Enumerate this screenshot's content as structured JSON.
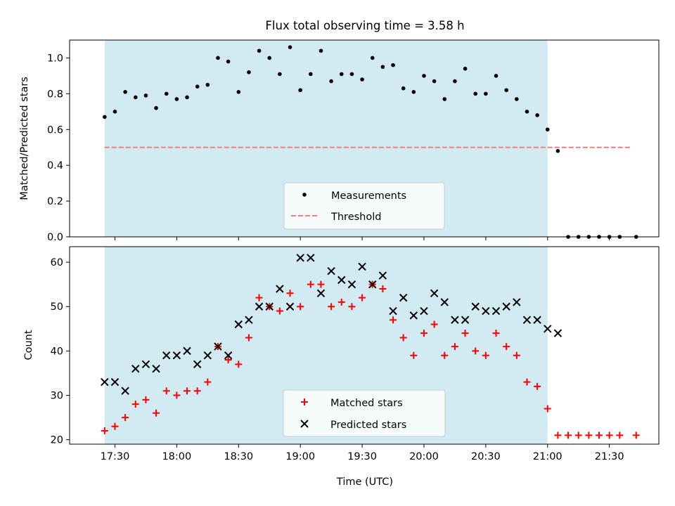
{
  "chart_data": [
    {
      "type": "scatter",
      "title": "Flux total observing time = 3.58 h",
      "xlabel": "",
      "ylabel": "Matched/Predicted stars",
      "ylim": [
        0,
        1.1
      ],
      "yticks": [
        "0.0",
        "0.2",
        "0.4",
        "0.6",
        "0.8",
        "1.0"
      ],
      "xlim_minutes": [
        1028,
        1314
      ],
      "xtick_labels_shown": false,
      "shaded_interval": {
        "start": "17:25",
        "end": "21:00",
        "color": "#add8e6"
      },
      "threshold": {
        "label": "Threshold",
        "value": 0.5,
        "from": "17:25",
        "to": "21:41",
        "color": "#f08080",
        "style": "dashed"
      },
      "legend_position": "lower center",
      "series": [
        {
          "name": "Measurements",
          "color": "#000000",
          "marker": "dot",
          "points": [
            [
              "17:25",
              0.67
            ],
            [
              "17:30",
              0.7
            ],
            [
              "17:35",
              0.81
            ],
            [
              "17:40",
              0.78
            ],
            [
              "17:45",
              0.79
            ],
            [
              "17:50",
              0.72
            ],
            [
              "17:55",
              0.8
            ],
            [
              "18:00",
              0.77
            ],
            [
              "18:05",
              0.78
            ],
            [
              "18:10",
              0.84
            ],
            [
              "18:15",
              0.85
            ],
            [
              "18:20",
              1.0
            ],
            [
              "18:25",
              0.98
            ],
            [
              "18:30",
              0.81
            ],
            [
              "18:35",
              0.92
            ],
            [
              "18:40",
              1.04
            ],
            [
              "18:45",
              1.0
            ],
            [
              "18:50",
              0.91
            ],
            [
              "18:55",
              1.06
            ],
            [
              "19:00",
              0.82
            ],
            [
              "19:05",
              0.91
            ],
            [
              "19:10",
              1.04
            ],
            [
              "19:15",
              0.87
            ],
            [
              "19:20",
              0.91
            ],
            [
              "19:25",
              0.91
            ],
            [
              "19:30",
              0.88
            ],
            [
              "19:35",
              1.0
            ],
            [
              "19:40",
              0.95
            ],
            [
              "19:45",
              0.96
            ],
            [
              "19:50",
              0.83
            ],
            [
              "19:55",
              0.81
            ],
            [
              "20:00",
              0.9
            ],
            [
              "20:05",
              0.87
            ],
            [
              "20:10",
              0.77
            ],
            [
              "20:15",
              0.87
            ],
            [
              "20:20",
              0.94
            ],
            [
              "20:25",
              0.8
            ],
            [
              "20:30",
              0.8
            ],
            [
              "20:35",
              0.9
            ],
            [
              "20:40",
              0.82
            ],
            [
              "20:45",
              0.77
            ],
            [
              "20:50",
              0.7
            ],
            [
              "20:55",
              0.68
            ],
            [
              "21:00",
              0.6
            ],
            [
              "21:05",
              0.48
            ],
            [
              "21:10",
              0.0
            ],
            [
              "21:15",
              0.0
            ],
            [
              "21:20",
              0.0
            ],
            [
              "21:25",
              0.0
            ],
            [
              "21:30",
              0.0
            ],
            [
              "21:35",
              0.0
            ],
            [
              "21:43",
              0.0
            ]
          ]
        }
      ]
    },
    {
      "type": "scatter",
      "title": "",
      "xlabel": "Time (UTC)",
      "ylabel": "Count",
      "ylim": [
        19,
        63.5
      ],
      "yticks": [
        "20",
        "30",
        "40",
        "50",
        "60"
      ],
      "xlim_minutes": [
        1028,
        1314
      ],
      "xticks": [
        "17:30",
        "18:00",
        "18:30",
        "19:00",
        "19:30",
        "20:00",
        "20:30",
        "21:00",
        "21:30"
      ],
      "shaded_interval": {
        "start": "17:25",
        "end": "21:00",
        "color": "#add8e6"
      },
      "legend_position": "lower center",
      "series": [
        {
          "name": "Matched stars",
          "color": "#ff0000",
          "marker": "plus",
          "points": [
            [
              "17:25",
              22
            ],
            [
              "17:30",
              23
            ],
            [
              "17:35",
              25
            ],
            [
              "17:40",
              28
            ],
            [
              "17:45",
              29
            ],
            [
              "17:50",
              26
            ],
            [
              "17:55",
              31
            ],
            [
              "18:00",
              30
            ],
            [
              "18:05",
              31
            ],
            [
              "18:10",
              31
            ],
            [
              "18:15",
              33
            ],
            [
              "18:20",
              41
            ],
            [
              "18:25",
              38
            ],
            [
              "18:30",
              37
            ],
            [
              "18:35",
              43
            ],
            [
              "18:40",
              52
            ],
            [
              "18:45",
              50
            ],
            [
              "18:50",
              49
            ],
            [
              "18:55",
              53
            ],
            [
              "19:00",
              50
            ],
            [
              "19:05",
              55
            ],
            [
              "19:10",
              55
            ],
            [
              "19:15",
              50
            ],
            [
              "19:20",
              51
            ],
            [
              "19:25",
              50
            ],
            [
              "19:30",
              52
            ],
            [
              "19:35",
              55
            ],
            [
              "19:40",
              54
            ],
            [
              "19:45",
              47
            ],
            [
              "19:50",
              43
            ],
            [
              "19:55",
              39
            ],
            [
              "20:00",
              44
            ],
            [
              "20:05",
              46
            ],
            [
              "20:10",
              39
            ],
            [
              "20:15",
              41
            ],
            [
              "20:20",
              44
            ],
            [
              "20:25",
              40
            ],
            [
              "20:30",
              39
            ],
            [
              "20:35",
              44
            ],
            [
              "20:40",
              41
            ],
            [
              "20:45",
              39
            ],
            [
              "20:50",
              33
            ],
            [
              "20:55",
              32
            ],
            [
              "21:00",
              27
            ],
            [
              "21:05",
              21
            ],
            [
              "21:10",
              21
            ],
            [
              "21:15",
              21
            ],
            [
              "21:20",
              21
            ],
            [
              "21:25",
              21
            ],
            [
              "21:30",
              21
            ],
            [
              "21:35",
              21
            ],
            [
              "21:43",
              21
            ]
          ]
        },
        {
          "name": "Predicted stars",
          "color": "#000000",
          "marker": "x",
          "points": [
            [
              "17:25",
              33
            ],
            [
              "17:30",
              33
            ],
            [
              "17:35",
              31
            ],
            [
              "17:40",
              36
            ],
            [
              "17:45",
              37
            ],
            [
              "17:50",
              36
            ],
            [
              "17:55",
              39
            ],
            [
              "18:00",
              39
            ],
            [
              "18:05",
              40
            ],
            [
              "18:10",
              37
            ],
            [
              "18:15",
              39
            ],
            [
              "18:20",
              41
            ],
            [
              "18:25",
              39
            ],
            [
              "18:30",
              46
            ],
            [
              "18:35",
              47
            ],
            [
              "18:40",
              50
            ],
            [
              "18:45",
              50
            ],
            [
              "18:50",
              54
            ],
            [
              "18:55",
              50
            ],
            [
              "19:00",
              61
            ],
            [
              "19:05",
              61
            ],
            [
              "19:10",
              53
            ],
            [
              "19:15",
              58
            ],
            [
              "19:20",
              56
            ],
            [
              "19:25",
              55
            ],
            [
              "19:30",
              59
            ],
            [
              "19:35",
              55
            ],
            [
              "19:40",
              57
            ],
            [
              "19:45",
              49
            ],
            [
              "19:50",
              52
            ],
            [
              "19:55",
              48
            ],
            [
              "20:00",
              49
            ],
            [
              "20:05",
              53
            ],
            [
              "20:10",
              51
            ],
            [
              "20:15",
              47
            ],
            [
              "20:20",
              47
            ],
            [
              "20:25",
              50
            ],
            [
              "20:30",
              49
            ],
            [
              "20:35",
              49
            ],
            [
              "20:40",
              50
            ],
            [
              "20:45",
              51
            ],
            [
              "20:50",
              47
            ],
            [
              "20:55",
              47
            ],
            [
              "21:00",
              45
            ],
            [
              "21:05",
              44
            ]
          ]
        }
      ]
    }
  ]
}
